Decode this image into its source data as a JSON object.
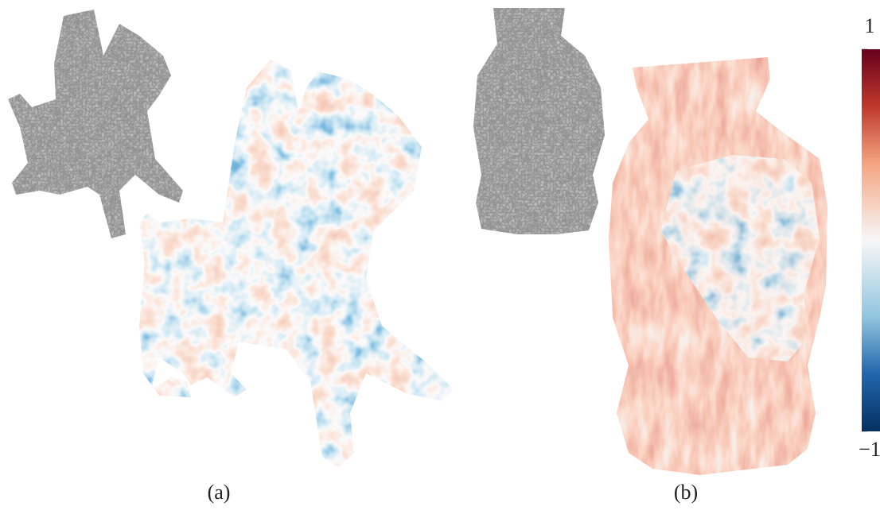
{
  "panels": [
    {
      "label": "(a)"
    },
    {
      "label": "(b)"
    }
  ],
  "colorbar": {
    "ticks": [
      1,
      {
        "value": -1,
        "label": "−1"
      }
    ]
  }
}
